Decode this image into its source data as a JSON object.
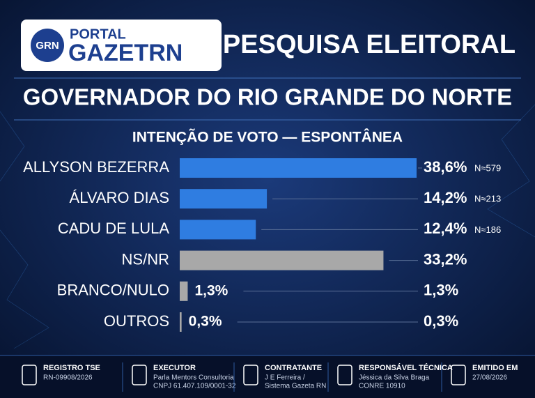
{
  "header": {
    "logo_badge": "GRN",
    "logo_top": "PORTAL",
    "logo_name": "GAZETRN",
    "title": "PESQUISA ELEITORAL",
    "subtitle": "GOVERNADOR DO RIO GRANDE DO NORTE"
  },
  "chart_data": {
    "type": "bar",
    "orientation": "horizontal",
    "title": "INTENÇÃO DE VOTO — ESPONTÂNEA",
    "categories": [
      "ALLYSON BEZERRA",
      "ÁLVARO DIAS",
      "CADU DE LULA",
      "NS/NR",
      "BRANCO/NULO",
      "OUTROS"
    ],
    "values": [
      38.6,
      14.2,
      12.4,
      33.2,
      1.3,
      0.3
    ],
    "value_labels": [
      "38,6%",
      "14,2%",
      "12,4%",
      "33,2%",
      "1,3%",
      "0,3%"
    ],
    "colors": [
      "#2f7de1",
      "#2f7de1",
      "#2f7de1",
      "#a8a8a8",
      "#a8a8a8",
      "#a8a8a8"
    ],
    "sample_labels": [
      "N≈579",
      "N≈213",
      "N≈186",
      null,
      null,
      null
    ]
  },
  "footer": [
    {
      "title": "REGISTRO TSE",
      "lines": [
        "RN-09908/2026"
      ]
    },
    {
      "title": "EXECUTOR",
      "lines": [
        "Parla Mentors Consultoria",
        "CNPJ 61.407.109/0001-32"
      ]
    },
    {
      "title": "CONTRATANTE",
      "lines": [
        "J E Ferreira /",
        "Sistema Gazeta RN"
      ]
    },
    {
      "title": "RESPONSÁVEL TÉCNICA",
      "lines": [
        "Jéssica da Silva Braga",
        "CONRE 10910"
      ]
    },
    {
      "title": "EMITIDO EM",
      "lines": [
        "27/08/2026"
      ]
    }
  ]
}
